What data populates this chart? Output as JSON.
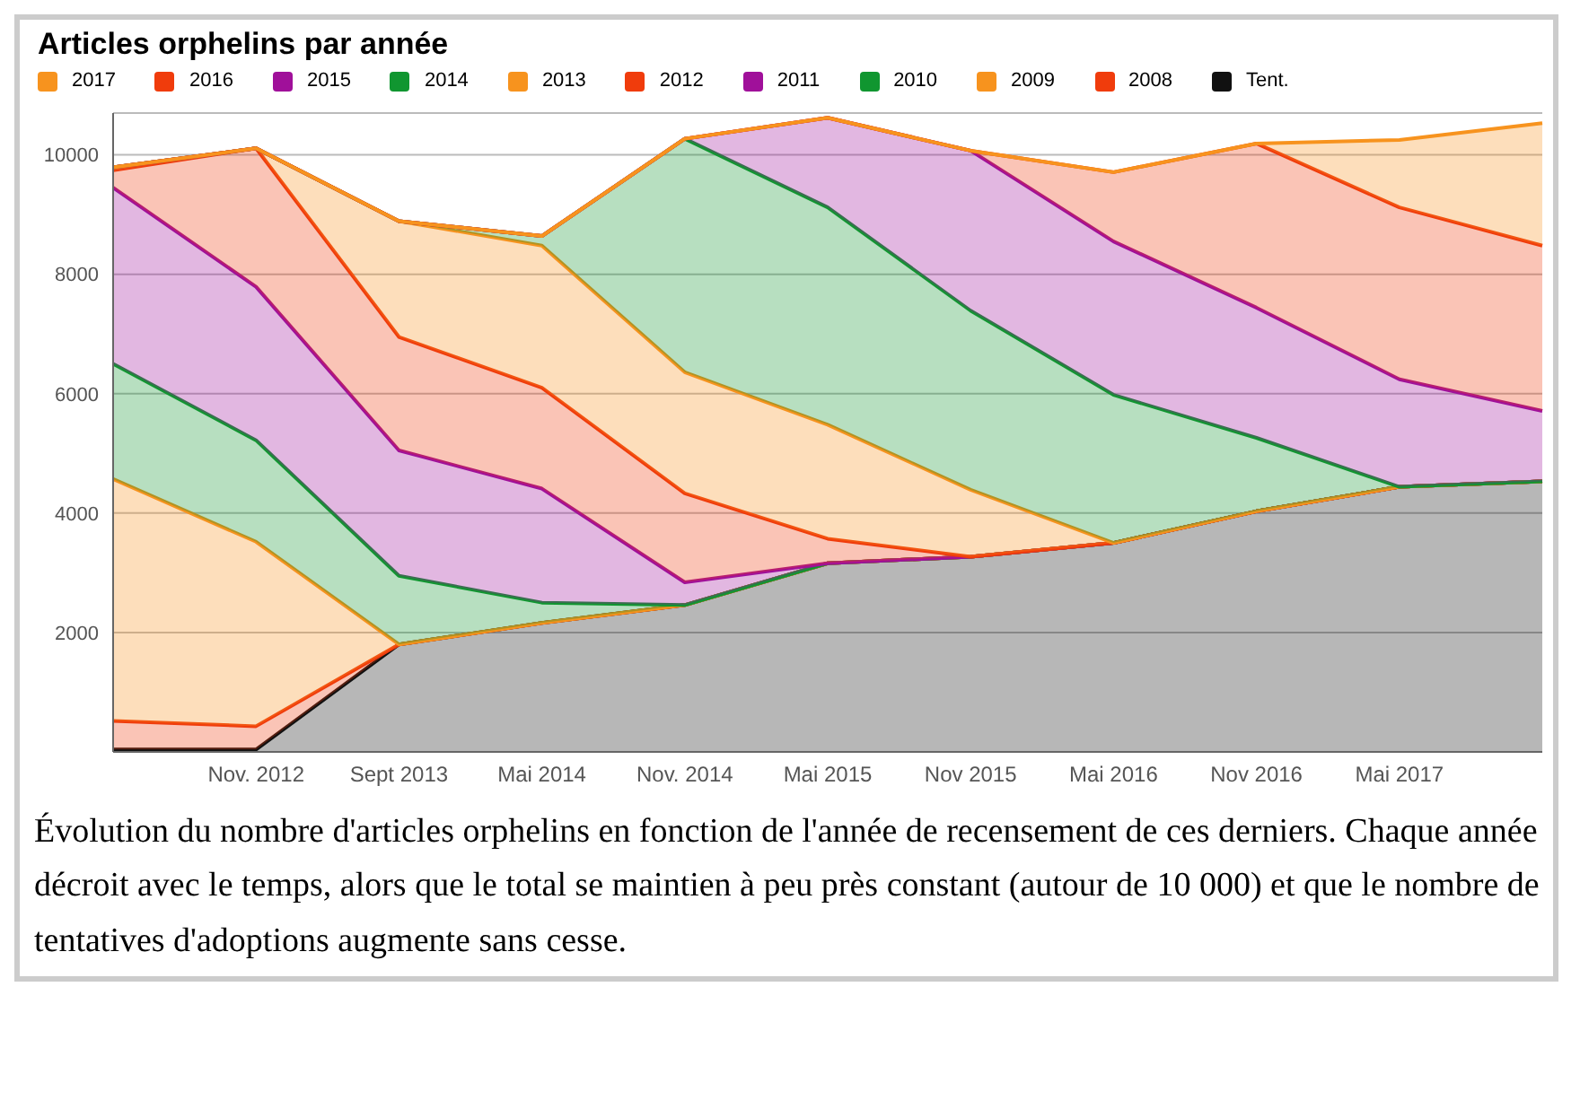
{
  "chart_data": {
    "type": "area",
    "title": "Articles orphelins par année",
    "stacked": true,
    "categories": [
      null,
      "Nov. 2012",
      "Sept 2013",
      "Mai 2014",
      "Nov. 2014",
      "Mai 2015",
      "Nov 2015",
      "Mai 2016",
      "Nov 2016",
      "Mai 2017",
      null
    ],
    "series": [
      {
        "name": "Tent.",
        "color": "#111111",
        "values": [
          40,
          40,
          1800,
          2160,
          2460,
          3160,
          3270,
          3500,
          4030,
          4440,
          4530
        ]
      },
      {
        "name": "2008",
        "color": "#f03c0c",
        "values": [
          480,
          390,
          0,
          0,
          0,
          0,
          0,
          0,
          0,
          0,
          0
        ]
      },
      {
        "name": "2009",
        "color": "#f7931e",
        "values": [
          4050,
          3090,
          0,
          0,
          0,
          0,
          0,
          0,
          0,
          0,
          0
        ]
      },
      {
        "name": "2010",
        "color": "#109630",
        "values": [
          1930,
          1700,
          1150,
          340,
          0,
          0,
          0,
          0,
          0,
          0,
          0
        ]
      },
      {
        "name": "2011",
        "color": "#a0109a",
        "values": [
          2950,
          2570,
          2100,
          1910,
          380,
          0,
          0,
          0,
          0,
          0,
          0
        ]
      },
      {
        "name": "2012",
        "color": "#f03c0c",
        "values": [
          290,
          2320,
          1900,
          1690,
          1490,
          410,
          0,
          0,
          0,
          0,
          0
        ]
      },
      {
        "name": "2013",
        "color": "#f7931e",
        "values": [
          50,
          0,
          1940,
          2380,
          2030,
          1910,
          1120,
          0,
          0,
          0,
          0
        ]
      },
      {
        "name": "2014",
        "color": "#109630",
        "values": [
          0,
          0,
          0,
          160,
          3910,
          3640,
          3000,
          2480,
          1230,
          0,
          0
        ]
      },
      {
        "name": "2015",
        "color": "#a0109a",
        "values": [
          0,
          0,
          0,
          0,
          0,
          1500,
          2680,
          2570,
          2180,
          1800,
          1180
        ]
      },
      {
        "name": "2016",
        "color": "#f03c0c",
        "values": [
          0,
          0,
          0,
          0,
          0,
          0,
          0,
          1160,
          2750,
          2880,
          2770
        ]
      },
      {
        "name": "2017",
        "color": "#f7931e",
        "values": [
          0,
          0,
          0,
          0,
          0,
          0,
          0,
          0,
          0,
          1130,
          2050
        ]
      }
    ],
    "ylim": [
      0,
      10700
    ],
    "yticks": [
      2000,
      4000,
      6000,
      8000,
      10000
    ],
    "grid": "y",
    "legend": "top",
    "annotations": [
      "Évolution du nombre d'articles orphelins en fonction de l'année de recensement de ces derniers. Chaque année décroit avec le temps, alors que le total se maintien à peu près constant (autour de 10 000) et que le nombre de tentatives d'adoptions augmente sans cesse."
    ]
  }
}
